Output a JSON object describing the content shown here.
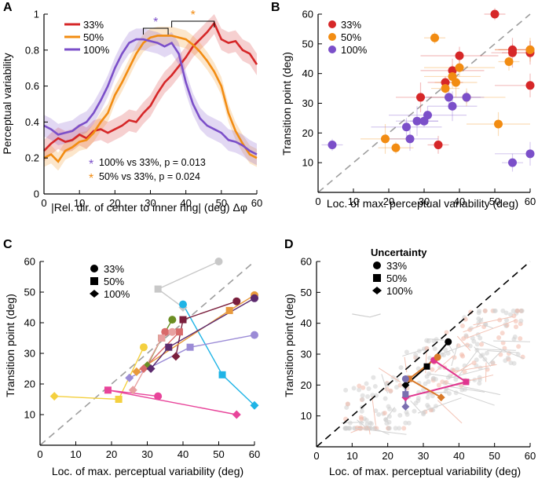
{
  "colors": {
    "c33": "#d62728",
    "c50": "#f28c12",
    "c100": "#7b4fc9",
    "axis": "#000000",
    "diag": "#9e9e9e"
  },
  "chart_data": [
    {
      "panel": "A",
      "type": "line",
      "xlabel": "|Rel. dir. of center to inner ring| (deg) Δφ",
      "ylabel": "Perceptual variability",
      "xlim": [
        0,
        60
      ],
      "ylim": [
        0,
        1
      ],
      "xticks": [
        0,
        10,
        20,
        30,
        40,
        50,
        60
      ],
      "yticks": [
        0,
        0.2,
        0.4,
        0.6,
        0.8,
        1
      ],
      "legend": [
        "33%",
        "50%",
        "100%"
      ],
      "series": [
        {
          "name": "33%",
          "color": "#d62728",
          "x": [
            0,
            2,
            4,
            6,
            8,
            10,
            12,
            14,
            16,
            18,
            20,
            22,
            24,
            26,
            28,
            30,
            32,
            34,
            36,
            38,
            40,
            42,
            44,
            46,
            48,
            50,
            52,
            54,
            56,
            58,
            60
          ],
          "y": [
            0.24,
            0.28,
            0.31,
            0.29,
            0.3,
            0.33,
            0.31,
            0.35,
            0.36,
            0.34,
            0.36,
            0.38,
            0.41,
            0.4,
            0.45,
            0.49,
            0.56,
            0.62,
            0.66,
            0.71,
            0.76,
            0.82,
            0.86,
            0.9,
            0.95,
            0.86,
            0.84,
            0.85,
            0.8,
            0.78,
            0.72
          ],
          "ci": 0.06
        },
        {
          "name": "50%",
          "color": "#f28c12",
          "x": [
            0,
            2,
            4,
            6,
            8,
            10,
            12,
            14,
            16,
            18,
            20,
            22,
            24,
            26,
            28,
            30,
            32,
            34,
            36,
            38,
            40,
            42,
            44,
            46,
            48,
            50,
            52,
            54,
            56,
            58,
            60
          ],
          "y": [
            0.2,
            0.22,
            0.18,
            0.24,
            0.26,
            0.29,
            0.3,
            0.34,
            0.4,
            0.45,
            0.55,
            0.62,
            0.7,
            0.78,
            0.84,
            0.87,
            0.88,
            0.88,
            0.88,
            0.87,
            0.86,
            0.83,
            0.79,
            0.74,
            0.68,
            0.6,
            0.45,
            0.35,
            0.28,
            0.22,
            0.2
          ],
          "ci": 0.05
        },
        {
          "name": "100%",
          "color": "#7b4fc9",
          "x": [
            0,
            2,
            4,
            6,
            8,
            10,
            12,
            14,
            16,
            18,
            20,
            22,
            24,
            26,
            28,
            30,
            32,
            34,
            36,
            38,
            40,
            42,
            44,
            46,
            48,
            50,
            52,
            54,
            56,
            58,
            60
          ],
          "y": [
            0.38,
            0.36,
            0.33,
            0.34,
            0.35,
            0.38,
            0.4,
            0.45,
            0.52,
            0.6,
            0.7,
            0.78,
            0.84,
            0.86,
            0.86,
            0.85,
            0.84,
            0.82,
            0.84,
            0.78,
            0.62,
            0.5,
            0.42,
            0.38,
            0.36,
            0.34,
            0.3,
            0.29,
            0.27,
            0.24,
            0.22
          ],
          "ci": 0.06
        }
      ],
      "annotations": {
        "sig_purple": {
          "label": "*",
          "x1": 28,
          "x2": 35
        },
        "sig_orange": {
          "label": "*",
          "x1": 36,
          "x2": 48
        },
        "text1": "100% vs 33%, p = 0.013",
        "text2": "50% vs 33%, p = 0.024",
        "star1": "*",
        "star2": "*"
      }
    },
    {
      "panel": "B",
      "type": "scatter",
      "xlabel": "Loc. of max. perceptual variability (deg)",
      "ylabel": "Transition point (deg)",
      "xlim": [
        0,
        60
      ],
      "ylim": [
        0,
        60
      ],
      "xticks": [
        0,
        10,
        20,
        30,
        40,
        50,
        60
      ],
      "yticks": [
        10,
        20,
        30,
        40,
        50,
        60
      ],
      "legend": [
        "33%",
        "50%",
        "100%"
      ],
      "series": [
        {
          "name": "33%",
          "color": "#d62728",
          "points": [
            [
              50,
              60
            ],
            [
              60,
              48
            ],
            [
              60,
              47
            ],
            [
              55,
              47
            ],
            [
              55,
              48
            ],
            [
              40,
              46
            ],
            [
              38,
              41
            ],
            [
              29,
              32
            ],
            [
              36,
              37
            ],
            [
              34,
              16
            ],
            [
              60,
              36
            ]
          ]
        },
        {
          "name": "50%",
          "color": "#f28c12",
          "points": [
            [
              33,
              52
            ],
            [
              40,
              42
            ],
            [
              38,
              39
            ],
            [
              39,
              37
            ],
            [
              36,
              35
            ],
            [
              42,
              32
            ],
            [
              51,
              23
            ],
            [
              19,
              18
            ],
            [
              22,
              15
            ],
            [
              54,
              44
            ],
            [
              60,
              48
            ]
          ]
        },
        {
          "name": "100%",
          "color": "#7b4fc9",
          "points": [
            [
              4,
              16
            ],
            [
              25,
              22
            ],
            [
              26,
              18
            ],
            [
              28,
              24
            ],
            [
              30,
              24
            ],
            [
              31,
              26
            ],
            [
              37,
              32
            ],
            [
              38,
              29
            ],
            [
              42,
              32
            ],
            [
              55,
              10
            ],
            [
              60,
              13
            ]
          ]
        }
      ]
    },
    {
      "panel": "C",
      "type": "scatter",
      "xlabel": "Loc. of max. perceptual variability (deg)",
      "ylabel": "Transition point (deg)",
      "xlim": [
        0,
        60
      ],
      "ylim": [
        0,
        60
      ],
      "xticks": [
        0,
        10,
        20,
        30,
        40,
        50,
        60
      ],
      "yticks": [
        10,
        20,
        30,
        40,
        50,
        60
      ],
      "legend": [
        "33%",
        "50%",
        "100%"
      ],
      "subjects": [
        {
          "color": "#c8c8c8",
          "circle": [
            50,
            60
          ],
          "square": [
            33,
            51
          ],
          "diamond": [
            40,
            45
          ]
        },
        {
          "color": "#1fb4e6",
          "circle": [
            40,
            46
          ],
          "square": [
            51,
            23
          ],
          "diamond": [
            60,
            13
          ]
        },
        {
          "color": "#f4d03f",
          "circle": [
            29,
            32
          ],
          "square": [
            22,
            15
          ],
          "diamond": [
            4,
            16
          ]
        },
        {
          "color": "#e8449a",
          "circle": [
            33,
            16
          ],
          "square": [
            19,
            18
          ],
          "diamond": [
            55,
            10
          ]
        },
        {
          "color": "#9b8bd6",
          "circle": [
            60,
            36
          ],
          "square": [
            42,
            32
          ],
          "diamond": [
            25,
            22
          ]
        },
        {
          "color": "#7a1f3d",
          "circle": [
            55,
            47
          ],
          "square": [
            40,
            41
          ],
          "diamond": [
            38,
            29
          ]
        },
        {
          "color": "#e89a3c",
          "circle": [
            60,
            49
          ],
          "square": [
            53,
            44
          ],
          "diamond": [
            27,
            24
          ]
        },
        {
          "color": "#6b8e23",
          "circle": [
            37,
            41
          ],
          "square": [
            34,
            35
          ],
          "diamond": [
            30,
            26
          ]
        },
        {
          "color": "#d86a6a",
          "circle": [
            35,
            37
          ],
          "square": [
            39,
            37
          ],
          "diamond": [
            29,
            25
          ]
        },
        {
          "color": "#e8a0a0",
          "circle": [
            37,
            37
          ],
          "square": [
            34,
            35
          ],
          "diamond": [
            26,
            18
          ]
        },
        {
          "color": "#5c2a6e",
          "circle": [
            60,
            48
          ],
          "square": [
            36,
            32
          ],
          "diamond": [
            31,
            25
          ]
        }
      ]
    },
    {
      "panel": "D",
      "type": "scatter",
      "xlabel": "Loc. of max. perceptual variability (deg)",
      "ylabel": "Transition point (deg)",
      "xlim": [
        0,
        60
      ],
      "ylim": [
        0,
        60
      ],
      "xticks": [
        0,
        10,
        20,
        30,
        40,
        50,
        60
      ],
      "yticks": [
        10,
        20,
        30,
        40,
        50,
        60
      ],
      "legend_title": "Uncertainty",
      "legend": [
        "33%",
        "50%",
        "100%"
      ],
      "highlight": [
        {
          "color": "#000000",
          "circle": [
            37,
            34
          ],
          "square": [
            31,
            26
          ],
          "diamond": [
            25,
            20
          ]
        },
        {
          "color": "#e0358f",
          "circle": [
            33,
            28
          ],
          "square": [
            42,
            21
          ],
          "diamond": [
            25,
            16
          ]
        },
        {
          "color": "#d97a2a",
          "circle": [
            34,
            29
          ],
          "square": [
            26,
            22
          ],
          "diamond": [
            35,
            16
          ]
        },
        {
          "color": "#7a6fb0",
          "circle": [
            25,
            22
          ],
          "square": [
            25,
            17
          ],
          "diamond": [
            25,
            13
          ]
        }
      ]
    }
  ],
  "panel_labels": [
    "A",
    "B",
    "C",
    "D"
  ]
}
